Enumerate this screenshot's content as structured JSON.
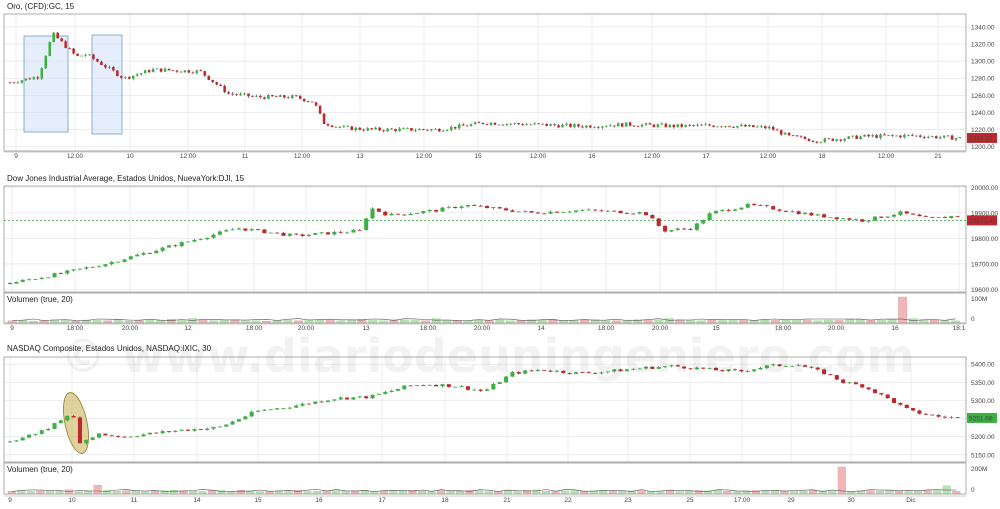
{
  "watermark": "© www.diariodeuningeniero.com",
  "colors": {
    "up": "#3cb043",
    "down": "#c0272d",
    "grid": "#e6e6e6",
    "frame": "#9a9a9a",
    "vol_up": "#b9e3b3",
    "vol_down": "#f0b7b8"
  },
  "chart_data": [
    {
      "type": "candlestick",
      "title": "Oro, (CFD):GC, 15",
      "ylim": [
        1195,
        1355
      ],
      "y_ticks": [
        "1340.00",
        "1320.00",
        "1300.00",
        "1280.00",
        "1260.00",
        "1240.00",
        "1220.00",
        "1200.00"
      ],
      "last_price_label": "1210.25",
      "x_tick_labels": [
        "9",
        "12:00",
        "10",
        "12:00",
        "11",
        "12:00",
        "13",
        "12:00",
        "15",
        "12:00",
        "16",
        "12:00",
        "17",
        "12:00",
        "18",
        "12:00",
        "21"
      ],
      "highlight_boxes": 2,
      "series": [
        {
          "x": [
            0,
            0.03,
            0.045,
            0.07,
            0.08,
            0.12,
            0.15,
            0.2,
            0.23,
            0.26,
            0.3,
            0.32,
            0.33,
            0.35,
            0.38,
            0.45,
            0.5,
            0.55,
            0.6,
            0.65,
            0.7,
            0.75,
            0.8,
            0.82,
            0.85,
            0.9,
            0.95,
            1
          ],
          "values": [
            1275,
            1282,
            1332,
            1305,
            1308,
            1280,
            1290,
            1288,
            1262,
            1258,
            1258,
            1252,
            1228,
            1222,
            1220,
            1220,
            1228,
            1226,
            1224,
            1226,
            1224,
            1225,
            1222,
            1212,
            1207,
            1212,
            1213,
            1210
          ]
        }
      ]
    },
    {
      "type": "candlestick",
      "title": "Dow Jones Industrial Average, Estados Unidos, NuevaYork:DJI, 15",
      "ylim": [
        19590,
        20005
      ],
      "y_ticks": [
        "20000.00",
        "19900.00",
        "19800.00",
        "19700.00",
        "19600.00"
      ],
      "last_price_label": "19870.40",
      "x_tick_labels": [
        "9",
        "18:00",
        "20:00",
        "12",
        "18:00",
        "20:00",
        "13",
        "18:00",
        "20:00",
        "14",
        "18:00",
        "20:00",
        "15",
        "18:00",
        "20:00",
        "16",
        "18:1"
      ],
      "series": [
        {
          "x": [
            0,
            0.05,
            0.1,
            0.15,
            0.2,
            0.24,
            0.3,
            0.37,
            0.38,
            0.4,
            0.45,
            0.48,
            0.55,
            0.6,
            0.67,
            0.69,
            0.72,
            0.74,
            0.78,
            0.8,
            0.85,
            0.9,
            0.94,
            0.97,
            1
          ],
          "values": [
            19625,
            19660,
            19700,
            19750,
            19800,
            19840,
            19810,
            19830,
            19920,
            19890,
            19910,
            19930,
            19900,
            19910,
            19900,
            19830,
            19840,
            19900,
            19930,
            19920,
            19890,
            19870,
            19900,
            19875,
            19890
          ]
        }
      ]
    },
    {
      "type": "bar",
      "title": "Volumen (true, 20)",
      "y_ticks": [
        "100M",
        "0"
      ],
      "values": [
        6,
        8,
        5,
        7,
        9,
        6,
        5,
        8,
        7,
        6,
        9,
        5,
        6,
        7,
        8,
        10,
        9,
        12,
        7,
        6,
        8,
        9,
        7,
        6,
        5,
        8,
        7,
        6,
        9,
        8,
        7,
        6,
        8,
        10,
        7,
        6,
        9,
        8,
        7,
        6,
        12,
        8,
        7,
        6,
        9,
        7,
        8,
        6,
        7,
        9,
        8,
        10,
        6,
        7,
        8,
        9,
        7,
        6,
        8,
        9,
        7,
        8,
        12,
        9,
        7,
        6,
        8,
        7,
        9,
        7,
        6,
        8,
        7,
        9,
        8,
        7,
        6,
        8,
        7,
        9,
        10,
        8,
        7,
        9,
        70,
        12,
        9,
        8,
        7,
        6
      ]
    },
    {
      "type": "candlestick",
      "title": "NASDAQ Composite, Estados Unidos, NASDAQ:IXIC, 30",
      "ylim": [
        5130,
        5420
      ],
      "y_ticks": [
        "5400.00",
        "5350.00",
        "5300.00",
        "5250.00",
        "5200.00",
        "5150.00"
      ],
      "last_price_label": "5251.66",
      "x_tick_labels": [
        "9",
        "10",
        "11",
        "14",
        "15",
        "16",
        "17",
        "18",
        "21",
        "22",
        "23",
        "25",
        "17:00",
        "29",
        "30",
        "Dic"
      ],
      "highlight_ellipses": 1,
      "series": [
        {
          "x": [
            0,
            0.04,
            0.065,
            0.075,
            0.09,
            0.12,
            0.18,
            0.22,
            0.26,
            0.3,
            0.34,
            0.38,
            0.42,
            0.44,
            0.47,
            0.5,
            0.53,
            0.56,
            0.6,
            0.63,
            0.67,
            0.7,
            0.74,
            0.77,
            0.8,
            0.83,
            0.86,
            0.88,
            0.9,
            0.93,
            0.95,
            0.98,
            1
          ],
          "values": [
            5185,
            5222,
            5270,
            5175,
            5208,
            5200,
            5218,
            5225,
            5270,
            5285,
            5305,
            5310,
            5340,
            5345,
            5340,
            5325,
            5375,
            5385,
            5375,
            5380,
            5390,
            5395,
            5385,
            5380,
            5395,
            5400,
            5375,
            5350,
            5340,
            5300,
            5270,
            5255,
            5252
          ]
        }
      ]
    },
    {
      "type": "bar",
      "title": "Volumen (true, 20)",
      "y_ticks": [
        "200M",
        "0"
      ],
      "values": [
        9,
        12,
        8,
        10,
        11,
        9,
        13,
        8,
        10,
        28,
        12,
        9,
        10,
        11,
        8,
        9,
        10,
        12,
        11,
        9,
        8,
        10,
        11,
        9,
        12,
        10,
        8,
        9,
        11,
        10,
        12,
        8,
        9,
        10,
        11,
        9,
        10,
        12,
        8,
        9,
        10,
        11,
        12,
        9,
        8,
        10,
        11,
        9,
        12,
        10,
        8,
        9,
        11,
        10,
        12,
        13,
        9,
        8,
        10,
        11,
        9,
        10,
        12,
        8,
        9,
        10,
        11,
        9,
        10,
        12,
        8,
        9,
        11,
        10,
        12,
        9,
        8,
        10,
        11,
        9,
        12,
        10,
        8,
        9,
        11,
        10,
        12,
        85,
        9,
        10,
        11,
        9,
        12,
        10,
        8,
        9,
        11,
        10,
        26,
        9
      ]
    }
  ]
}
